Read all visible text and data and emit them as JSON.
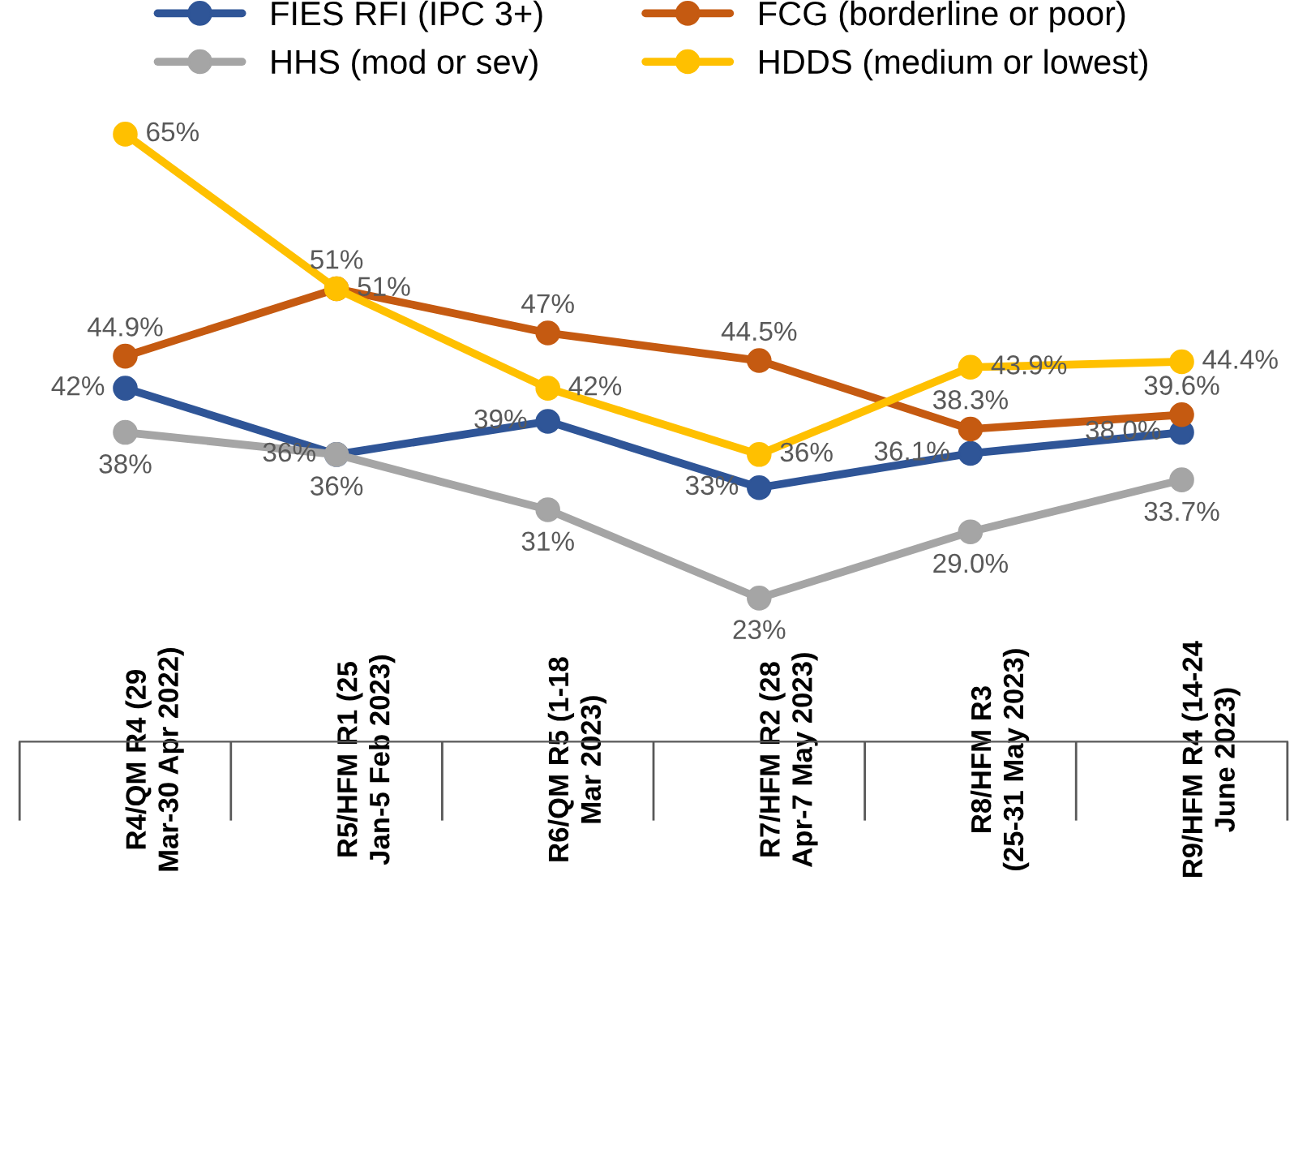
{
  "chart_data": {
    "type": "line",
    "categories": [
      "R4/QM R4 (29 Mar-30 Apr 2022)",
      "R5/HFM R1 (25 Jan-5 Feb 2023)",
      "R6/QM R5 (1-18 Mar 2023)",
      "R7/HFM R2 (28 Apr-7 May 2023)",
      "R8/HFM R3 (25-31 May 2023)",
      "R9/HFM R4 (14-24 June 2023)"
    ],
    "series": [
      {
        "name": "FIES RFI (IPC 3+)",
        "color": "#2f5597",
        "values": [
          42,
          36,
          39,
          33,
          36.1,
          38.0
        ],
        "value_labels": [
          "42%",
          "36%",
          "39%",
          "33%",
          "36.1%",
          "38.0%"
        ]
      },
      {
        "name": "HHS (mod or sev)",
        "color": "#a5a5a5",
        "values": [
          38,
          36,
          31,
          23,
          29.0,
          33.7
        ],
        "value_labels": [
          "38%",
          "36%",
          "31%",
          "23%",
          "29.0%",
          "33.7%"
        ]
      },
      {
        "name": "FCG (borderline or poor)",
        "color": "#c55a11",
        "values": [
          44.9,
          51,
          47,
          44.5,
          38.3,
          39.6
        ],
        "value_labels": [
          "44.9%",
          "51%",
          "47%",
          "44.5%",
          "38.3%",
          "39.6%"
        ]
      },
      {
        "name": "HDDS (medium or lowest)",
        "color": "#ffc000",
        "values": [
          65,
          51,
          42,
          36,
          43.9,
          44.4
        ],
        "value_labels": [
          "65%",
          "51%",
          "42%",
          "36%",
          "43.9%",
          "44.4%"
        ]
      }
    ],
    "marker": "circle",
    "line_style": "solid",
    "legend": "top",
    "grid": false,
    "tick_labels": "x"
  }
}
